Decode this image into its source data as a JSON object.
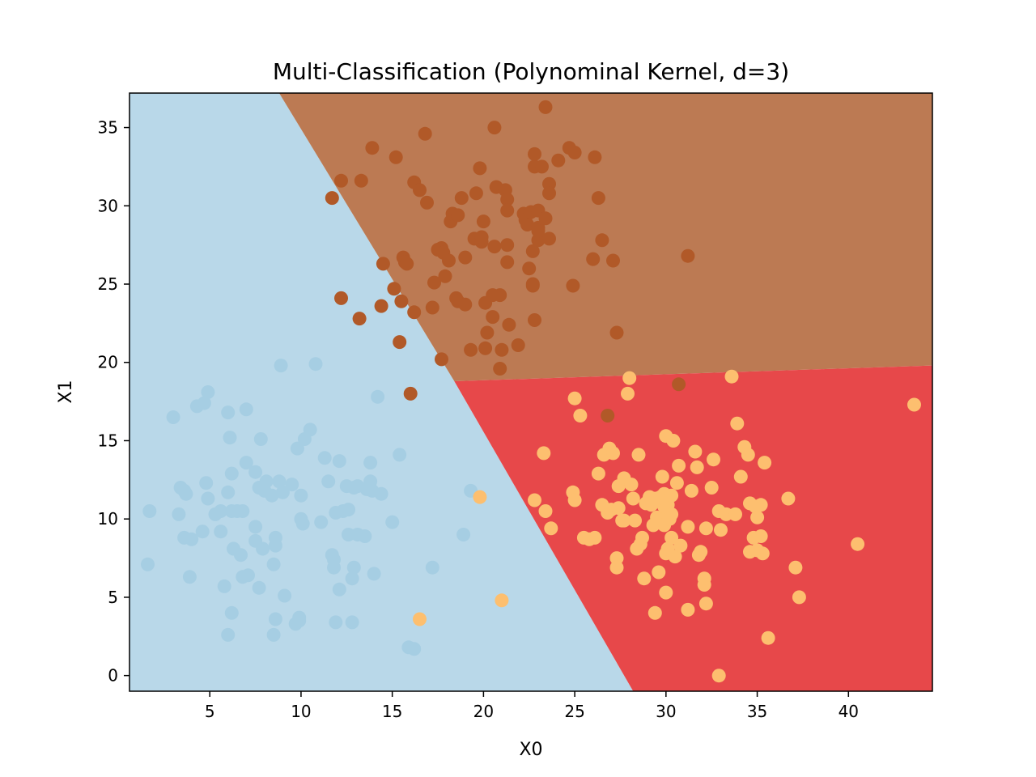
{
  "chart_data": {
    "type": "scatter",
    "title": "Multi-Classification (Polynominal Kernel, d=3)",
    "xlabel": "X0",
    "ylabel": "X1",
    "xlim": [
      0.6,
      44.6
    ],
    "ylim": [
      -1.0,
      37.2
    ],
    "x_ticks": [
      5,
      10,
      15,
      20,
      25,
      30,
      35,
      40
    ],
    "y_ticks": [
      0,
      5,
      10,
      15,
      20,
      25,
      30,
      35
    ],
    "grid": false,
    "decision_regions": [
      {
        "class": "0",
        "color": "#b9d8e9",
        "polygon": [
          [
            0.6,
            -1.0
          ],
          [
            28.2,
            -1.0
          ],
          [
            18.4,
            18.8
          ],
          [
            8.8,
            37.2
          ],
          [
            0.6,
            37.2
          ]
        ]
      },
      {
        "class": "1",
        "color": "#bc7a53",
        "polygon": [
          [
            8.8,
            37.2
          ],
          [
            44.6,
            37.2
          ],
          [
            44.6,
            19.8
          ],
          [
            18.4,
            18.8
          ]
        ]
      },
      {
        "class": "2",
        "color": "#e7484a",
        "polygon": [
          [
            18.4,
            18.8
          ],
          [
            44.6,
            19.8
          ],
          [
            44.6,
            -1.0
          ],
          [
            28.2,
            -1.0
          ]
        ]
      }
    ],
    "series": [
      {
        "class": "0",
        "color": "#a6cee3",
        "points": [
          [
            1.6,
            7.1
          ],
          [
            1.7,
            10.5
          ],
          [
            3.0,
            16.5
          ],
          [
            3.3,
            10.3
          ],
          [
            3.4,
            12.0
          ],
          [
            3.6,
            11.8
          ],
          [
            3.6,
            8.8
          ],
          [
            3.7,
            11.6
          ],
          [
            3.9,
            6.3
          ],
          [
            4.0,
            8.7
          ],
          [
            4.3,
            17.2
          ],
          [
            4.6,
            9.2
          ],
          [
            4.7,
            17.4
          ],
          [
            4.9,
            18.1
          ],
          [
            4.8,
            12.3
          ],
          [
            4.9,
            11.3
          ],
          [
            5.3,
            10.3
          ],
          [
            5.6,
            10.5
          ],
          [
            5.6,
            9.2
          ],
          [
            5.8,
            5.7
          ],
          [
            6.0,
            16.8
          ],
          [
            6.0,
            2.6
          ],
          [
            6.0,
            11.7
          ],
          [
            6.1,
            15.2
          ],
          [
            6.2,
            12.9
          ],
          [
            6.2,
            10.5
          ],
          [
            6.2,
            4.0
          ],
          [
            6.3,
            8.1
          ],
          [
            6.5,
            10.5
          ],
          [
            6.7,
            7.7
          ],
          [
            6.8,
            10.5
          ],
          [
            6.8,
            6.3
          ],
          [
            7.0,
            17.0
          ],
          [
            7.0,
            13.6
          ],
          [
            7.1,
            6.4
          ],
          [
            7.5,
            13.0
          ],
          [
            7.5,
            9.5
          ],
          [
            7.5,
            8.6
          ],
          [
            7.7,
            5.6
          ],
          [
            7.7,
            12.0
          ],
          [
            7.8,
            15.1
          ],
          [
            7.9,
            8.1
          ],
          [
            8.0,
            11.8
          ],
          [
            8.1,
            12.4
          ],
          [
            8.4,
            11.5
          ],
          [
            8.5,
            7.1
          ],
          [
            8.5,
            2.6
          ],
          [
            8.6,
            8.8
          ],
          [
            8.6,
            3.6
          ],
          [
            8.6,
            8.3
          ],
          [
            8.8,
            12.4
          ],
          [
            8.9,
            19.8
          ],
          [
            9.0,
            11.7
          ],
          [
            9.1,
            5.1
          ],
          [
            9.5,
            12.2
          ],
          [
            9.7,
            3.3
          ],
          [
            9.8,
            14.5
          ],
          [
            9.9,
            3.5
          ],
          [
            9.9,
            3.7
          ],
          [
            10.0,
            11.5
          ],
          [
            10.0,
            10.0
          ],
          [
            10.1,
            9.7
          ],
          [
            10.2,
            15.1
          ],
          [
            10.5,
            15.7
          ],
          [
            10.8,
            19.9
          ],
          [
            11.1,
            9.8
          ],
          [
            11.3,
            13.9
          ],
          [
            11.5,
            12.4
          ],
          [
            11.7,
            7.7
          ],
          [
            11.8,
            7.4
          ],
          [
            11.8,
            6.9
          ],
          [
            11.9,
            10.4
          ],
          [
            11.9,
            3.4
          ],
          [
            12.1,
            13.7
          ],
          [
            12.1,
            5.5
          ],
          [
            12.3,
            10.5
          ],
          [
            12.5,
            12.1
          ],
          [
            12.6,
            10.6
          ],
          [
            12.6,
            9.0
          ],
          [
            12.8,
            3.4
          ],
          [
            12.8,
            6.2
          ],
          [
            12.9,
            6.9
          ],
          [
            12.9,
            12.0
          ],
          [
            13.1,
            12.1
          ],
          [
            13.1,
            9.0
          ],
          [
            13.5,
            8.9
          ],
          [
            13.6,
            11.9
          ],
          [
            13.8,
            13.6
          ],
          [
            13.8,
            12.4
          ],
          [
            13.9,
            11.8
          ],
          [
            14.0,
            6.5
          ],
          [
            14.2,
            17.8
          ],
          [
            14.4,
            11.6
          ],
          [
            15.0,
            9.8
          ],
          [
            15.4,
            14.1
          ],
          [
            15.9,
            1.8
          ],
          [
            16.2,
            1.7
          ],
          [
            17.2,
            6.9
          ],
          [
            18.9,
            9.0
          ],
          [
            19.3,
            11.8
          ]
        ]
      },
      {
        "class": "1",
        "color": "#b15928",
        "points": [
          [
            11.7,
            30.5
          ],
          [
            12.2,
            31.6
          ],
          [
            12.2,
            24.1
          ],
          [
            13.2,
            22.8
          ],
          [
            13.3,
            31.6
          ],
          [
            13.9,
            33.7
          ],
          [
            14.4,
            23.6
          ],
          [
            14.5,
            26.3
          ],
          [
            15.1,
            24.7
          ],
          [
            15.2,
            33.1
          ],
          [
            15.4,
            21.3
          ],
          [
            15.5,
            23.9
          ],
          [
            15.6,
            26.7
          ],
          [
            15.7,
            26.4
          ],
          [
            15.8,
            26.3
          ],
          [
            16.0,
            18.0
          ],
          [
            16.2,
            23.2
          ],
          [
            16.2,
            31.5
          ],
          [
            16.5,
            31.0
          ],
          [
            16.8,
            34.6
          ],
          [
            16.9,
            30.2
          ],
          [
            17.2,
            23.5
          ],
          [
            17.3,
            25.1
          ],
          [
            17.5,
            27.2
          ],
          [
            17.7,
            20.2
          ],
          [
            17.7,
            27.3
          ],
          [
            17.8,
            27.0
          ],
          [
            17.9,
            25.5
          ],
          [
            18.1,
            26.5
          ],
          [
            18.2,
            29.0
          ],
          [
            18.3,
            29.5
          ],
          [
            18.5,
            24.1
          ],
          [
            18.6,
            23.9
          ],
          [
            18.6,
            29.4
          ],
          [
            18.8,
            30.5
          ],
          [
            19.0,
            23.7
          ],
          [
            19.0,
            26.7
          ],
          [
            19.3,
            20.8
          ],
          [
            19.5,
            27.9
          ],
          [
            19.6,
            30.8
          ],
          [
            19.8,
            32.4
          ],
          [
            19.9,
            27.7
          ],
          [
            19.9,
            28.0
          ],
          [
            20.0,
            29.0
          ],
          [
            20.1,
            20.9
          ],
          [
            20.1,
            23.8
          ],
          [
            20.2,
            21.9
          ],
          [
            20.5,
            24.3
          ],
          [
            20.5,
            22.9
          ],
          [
            20.6,
            35.0
          ],
          [
            20.6,
            27.4
          ],
          [
            20.7,
            31.2
          ],
          [
            20.9,
            24.3
          ],
          [
            20.9,
            19.6
          ],
          [
            21.0,
            20.8
          ],
          [
            21.2,
            31.0
          ],
          [
            21.3,
            27.5
          ],
          [
            21.3,
            26.4
          ],
          [
            21.3,
            30.4
          ],
          [
            21.3,
            29.7
          ],
          [
            21.4,
            22.4
          ],
          [
            21.9,
            21.1
          ],
          [
            22.2,
            29.5
          ],
          [
            22.3,
            29.1
          ],
          [
            22.4,
            28.8
          ],
          [
            22.5,
            26.0
          ],
          [
            22.6,
            29.6
          ],
          [
            22.7,
            25.0
          ],
          [
            22.7,
            24.9
          ],
          [
            22.7,
            27.1
          ],
          [
            22.8,
            22.7
          ],
          [
            22.8,
            32.5
          ],
          [
            22.8,
            33.3
          ],
          [
            23.0,
            28.6
          ],
          [
            23.0,
            27.8
          ],
          [
            23.0,
            29.7
          ],
          [
            23.0,
            28.4
          ],
          [
            23.2,
            32.5
          ],
          [
            23.4,
            36.3
          ],
          [
            23.4,
            29.2
          ],
          [
            23.6,
            27.9
          ],
          [
            23.6,
            31.4
          ],
          [
            23.6,
            30.8
          ],
          [
            24.1,
            32.9
          ],
          [
            24.7,
            33.7
          ],
          [
            24.9,
            24.9
          ],
          [
            25.0,
            33.4
          ],
          [
            26.0,
            26.6
          ],
          [
            26.1,
            33.1
          ],
          [
            26.3,
            30.5
          ],
          [
            26.5,
            27.8
          ],
          [
            26.8,
            16.6
          ],
          [
            27.1,
            26.5
          ],
          [
            27.3,
            21.9
          ],
          [
            30.7,
            18.6
          ],
          [
            31.2,
            26.8
          ]
        ]
      },
      {
        "class": "2",
        "color": "#fdbf6f",
        "points": [
          [
            16.5,
            3.6
          ],
          [
            19.8,
            11.4
          ],
          [
            21.0,
            4.8
          ],
          [
            22.8,
            11.2
          ],
          [
            23.3,
            14.2
          ],
          [
            23.4,
            10.5
          ],
          [
            23.7,
            9.4
          ],
          [
            24.9,
            11.7
          ],
          [
            25.0,
            17.7
          ],
          [
            25.0,
            11.2
          ],
          [
            25.3,
            16.6
          ],
          [
            25.5,
            8.8
          ],
          [
            25.8,
            8.7
          ],
          [
            26.1,
            8.8
          ],
          [
            26.3,
            12.9
          ],
          [
            26.5,
            10.9
          ],
          [
            26.6,
            14.1
          ],
          [
            26.8,
            10.4
          ],
          [
            26.9,
            14.5
          ],
          [
            27.0,
            10.6
          ],
          [
            27.1,
            14.2
          ],
          [
            27.3,
            7.5
          ],
          [
            27.3,
            6.9
          ],
          [
            27.4,
            12.1
          ],
          [
            27.4,
            10.7
          ],
          [
            27.6,
            9.9
          ],
          [
            27.7,
            12.6
          ],
          [
            27.7,
            9.9
          ],
          [
            27.9,
            18.0
          ],
          [
            28.0,
            19.0
          ],
          [
            28.1,
            12.2
          ],
          [
            28.2,
            11.3
          ],
          [
            28.3,
            9.9
          ],
          [
            28.4,
            8.1
          ],
          [
            28.5,
            14.1
          ],
          [
            28.6,
            8.4
          ],
          [
            28.7,
            8.8
          ],
          [
            28.8,
            6.2
          ],
          [
            28.9,
            11.0
          ],
          [
            29.1,
            11.4
          ],
          [
            29.2,
            10.9
          ],
          [
            29.3,
            9.6
          ],
          [
            29.4,
            11.3
          ],
          [
            29.4,
            4.0
          ],
          [
            29.5,
            10.1
          ],
          [
            29.6,
            6.6
          ],
          [
            29.7,
            11.4
          ],
          [
            29.8,
            10.0
          ],
          [
            29.8,
            12.7
          ],
          [
            29.9,
            11.6
          ],
          [
            29.9,
            10.8
          ],
          [
            29.9,
            9.6
          ],
          [
            30.0,
            7.8
          ],
          [
            30.0,
            5.3
          ],
          [
            30.0,
            15.3
          ],
          [
            30.1,
            8.1
          ],
          [
            30.1,
            10.9
          ],
          [
            30.2,
            10.0
          ],
          [
            30.3,
            11.5
          ],
          [
            30.3,
            10.3
          ],
          [
            30.3,
            8.8
          ],
          [
            30.4,
            15.0
          ],
          [
            30.5,
            7.6
          ],
          [
            30.6,
            12.3
          ],
          [
            30.7,
            13.4
          ],
          [
            30.8,
            8.3
          ],
          [
            31.2,
            4.2
          ],
          [
            31.2,
            9.5
          ],
          [
            31.4,
            11.8
          ],
          [
            31.6,
            14.3
          ],
          [
            31.7,
            13.3
          ],
          [
            31.8,
            7.7
          ],
          [
            31.9,
            7.9
          ],
          [
            32.1,
            6.2
          ],
          [
            32.1,
            5.8
          ],
          [
            32.2,
            4.6
          ],
          [
            32.2,
            9.4
          ],
          [
            32.5,
            12.0
          ],
          [
            32.6,
            13.8
          ],
          [
            32.9,
            10.5
          ],
          [
            32.9,
            0.0
          ],
          [
            33.0,
            9.3
          ],
          [
            33.3,
            10.3
          ],
          [
            33.6,
            19.1
          ],
          [
            33.8,
            10.3
          ],
          [
            33.9,
            16.1
          ],
          [
            34.1,
            12.7
          ],
          [
            34.3,
            14.6
          ],
          [
            34.5,
            14.1
          ],
          [
            34.6,
            11.0
          ],
          [
            34.6,
            7.9
          ],
          [
            34.8,
            8.8
          ],
          [
            34.9,
            10.8
          ],
          [
            35.0,
            10.1
          ],
          [
            35.0,
            8.0
          ],
          [
            35.2,
            10.9
          ],
          [
            35.2,
            8.9
          ],
          [
            35.3,
            7.8
          ],
          [
            35.4,
            13.6
          ],
          [
            35.6,
            2.4
          ],
          [
            36.7,
            11.3
          ],
          [
            37.1,
            6.9
          ],
          [
            37.3,
            5.0
          ],
          [
            40.5,
            8.4
          ],
          [
            43.6,
            17.3
          ]
        ]
      }
    ]
  }
}
